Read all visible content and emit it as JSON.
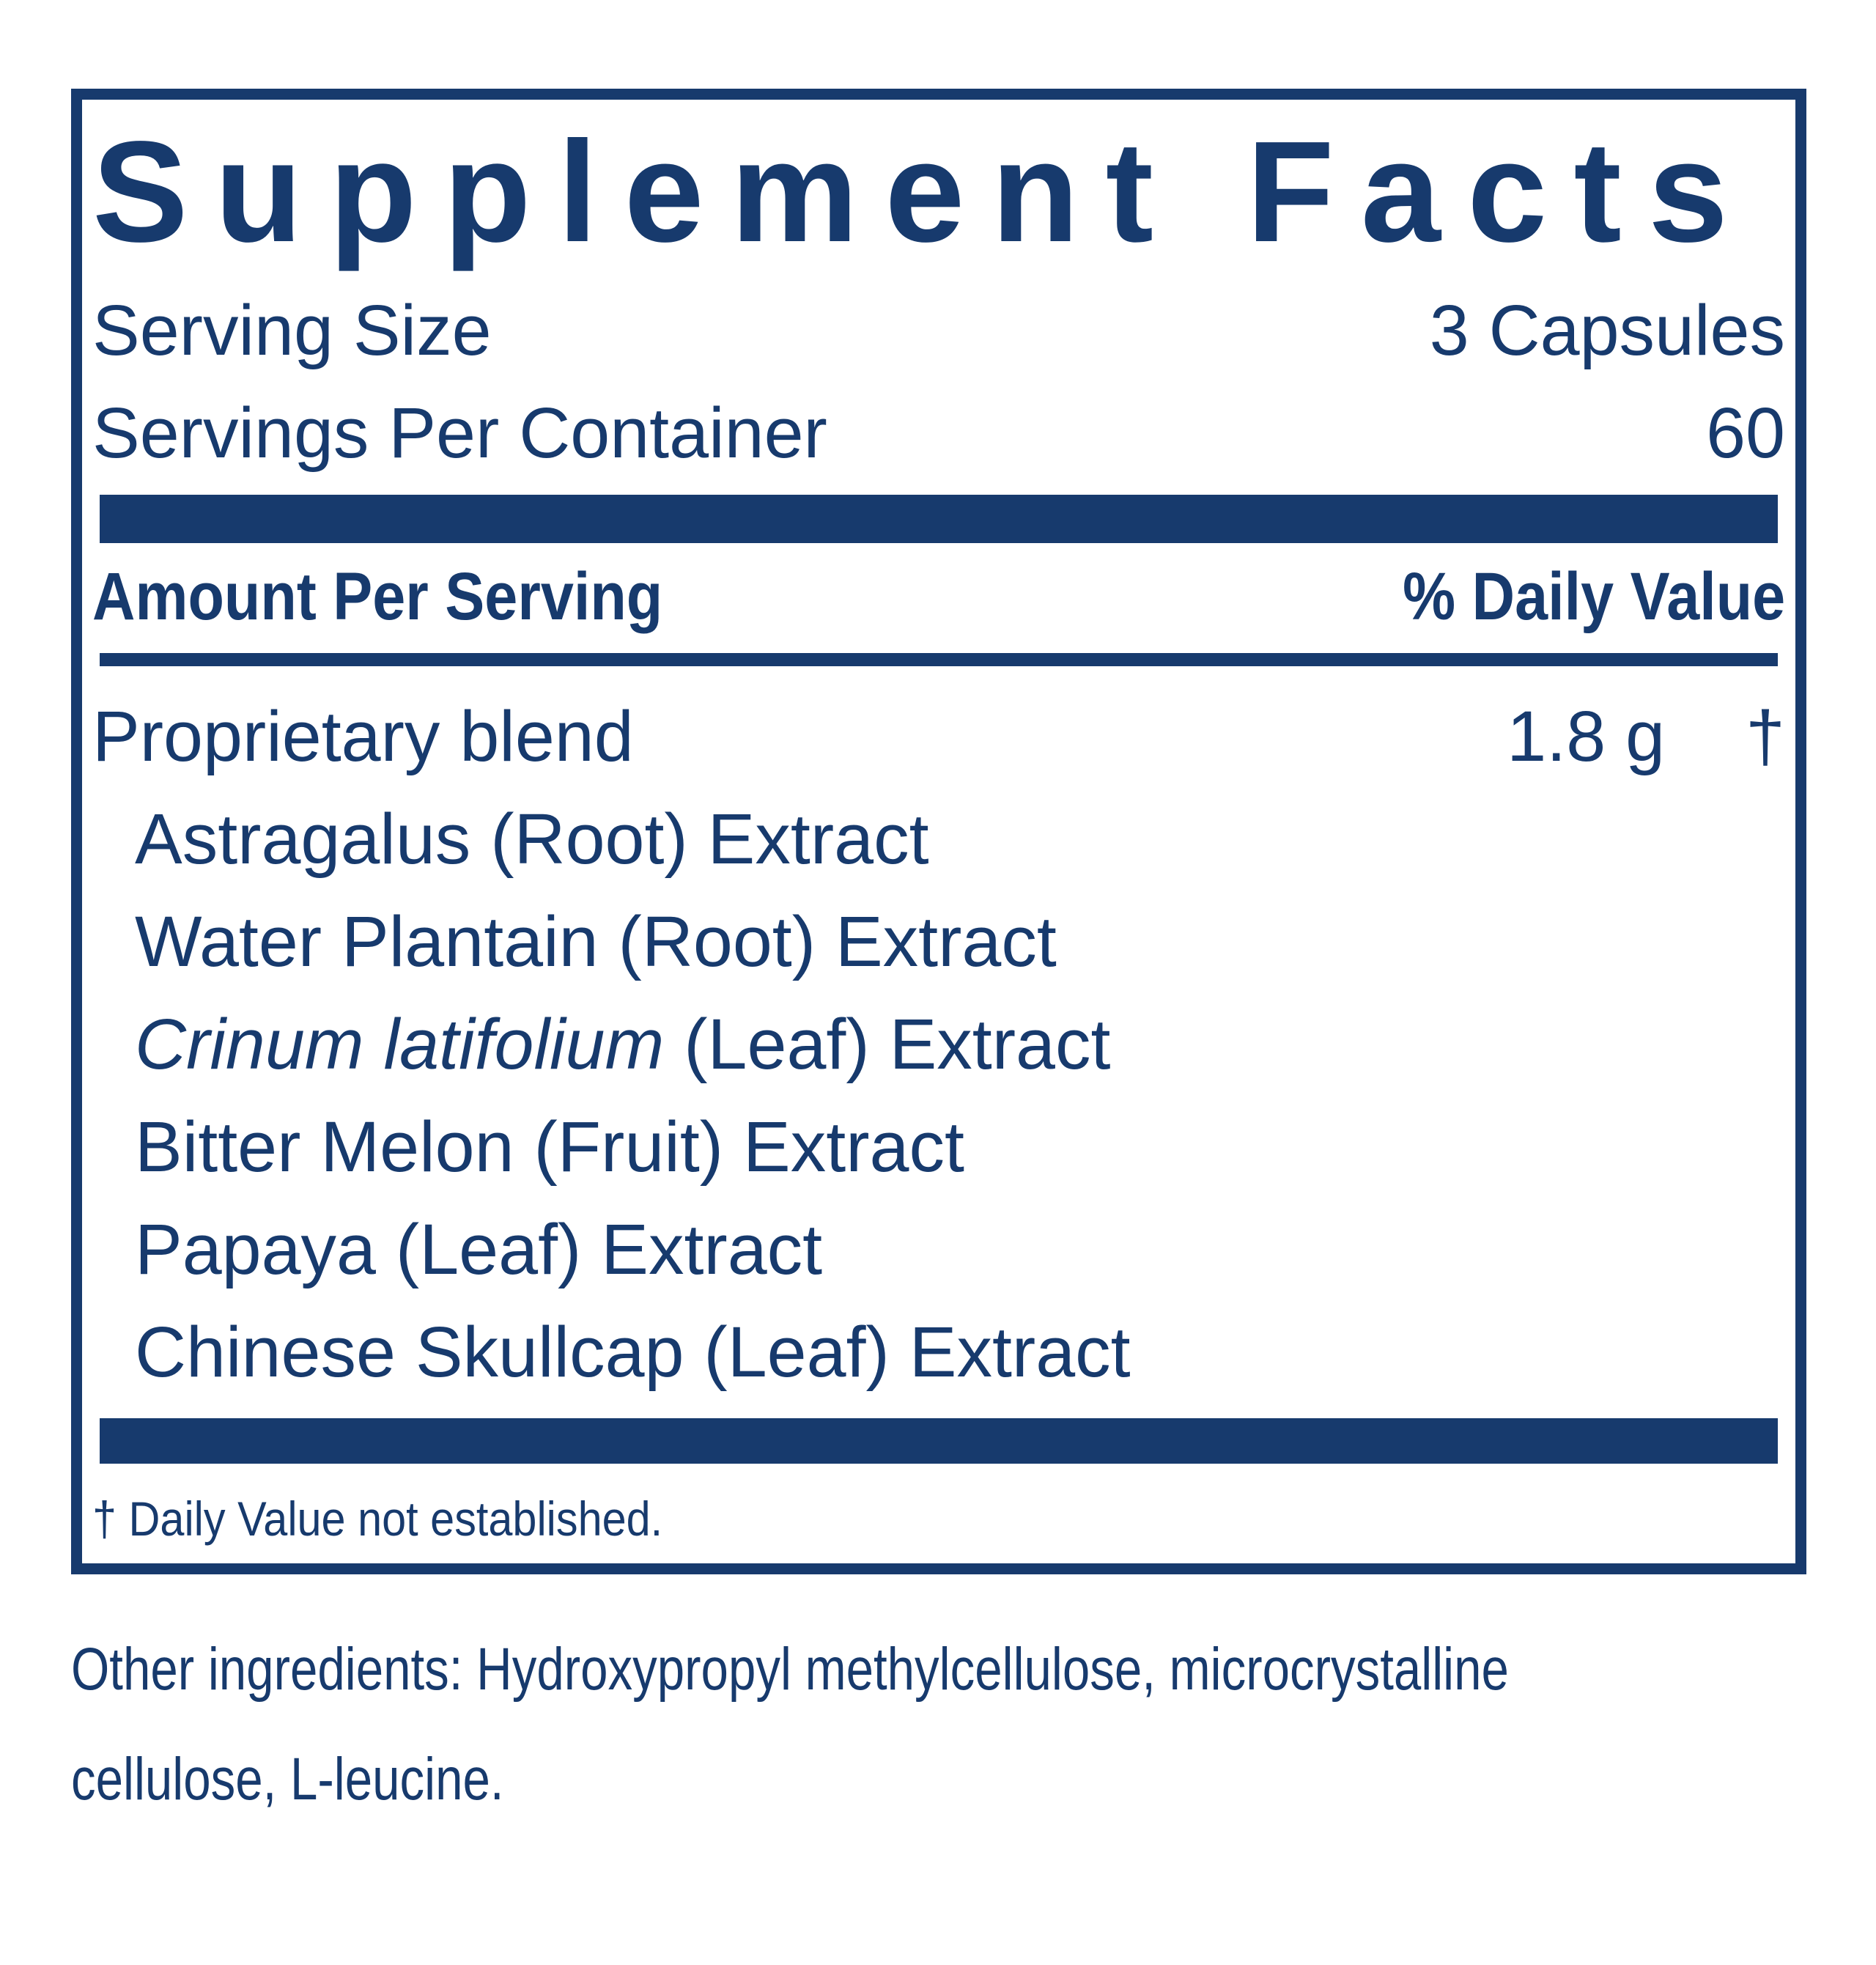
{
  "colors": {
    "navy": "#173A6D",
    "background": "#FFFFFF"
  },
  "panel": {
    "title": "Supplement Facts",
    "serving_size": {
      "label": "Serving Size",
      "value": "3 Capsules"
    },
    "servings_per_container": {
      "label": "Servings Per Container",
      "value": "60"
    },
    "columns": {
      "amount": "Amount Per Serving",
      "daily_value": "% Daily Value"
    },
    "blend": {
      "name": "Proprietary blend",
      "amount": "1.8 g",
      "daily_value_symbol": "†",
      "components": [
        {
          "italic": "",
          "rest": "Astragalus (Root) Extract"
        },
        {
          "italic": "",
          "rest": "Water Plantain (Root) Extract"
        },
        {
          "italic": "Crinum latifolium",
          "rest": " (Leaf) Extract"
        },
        {
          "italic": "",
          "rest": "Bitter Melon (Fruit) Extract"
        },
        {
          "italic": "",
          "rest": "Papaya (Leaf) Extract"
        },
        {
          "italic": "",
          "rest": "Chinese Skullcap (Leaf) Extract"
        }
      ]
    },
    "footnote": "† Daily Value not established."
  },
  "other_ingredients": {
    "line1": "Other ingredients: Hydroxypropyl methylcellulose, microcrystalline",
    "line2": "cellulose, L-leucine."
  }
}
